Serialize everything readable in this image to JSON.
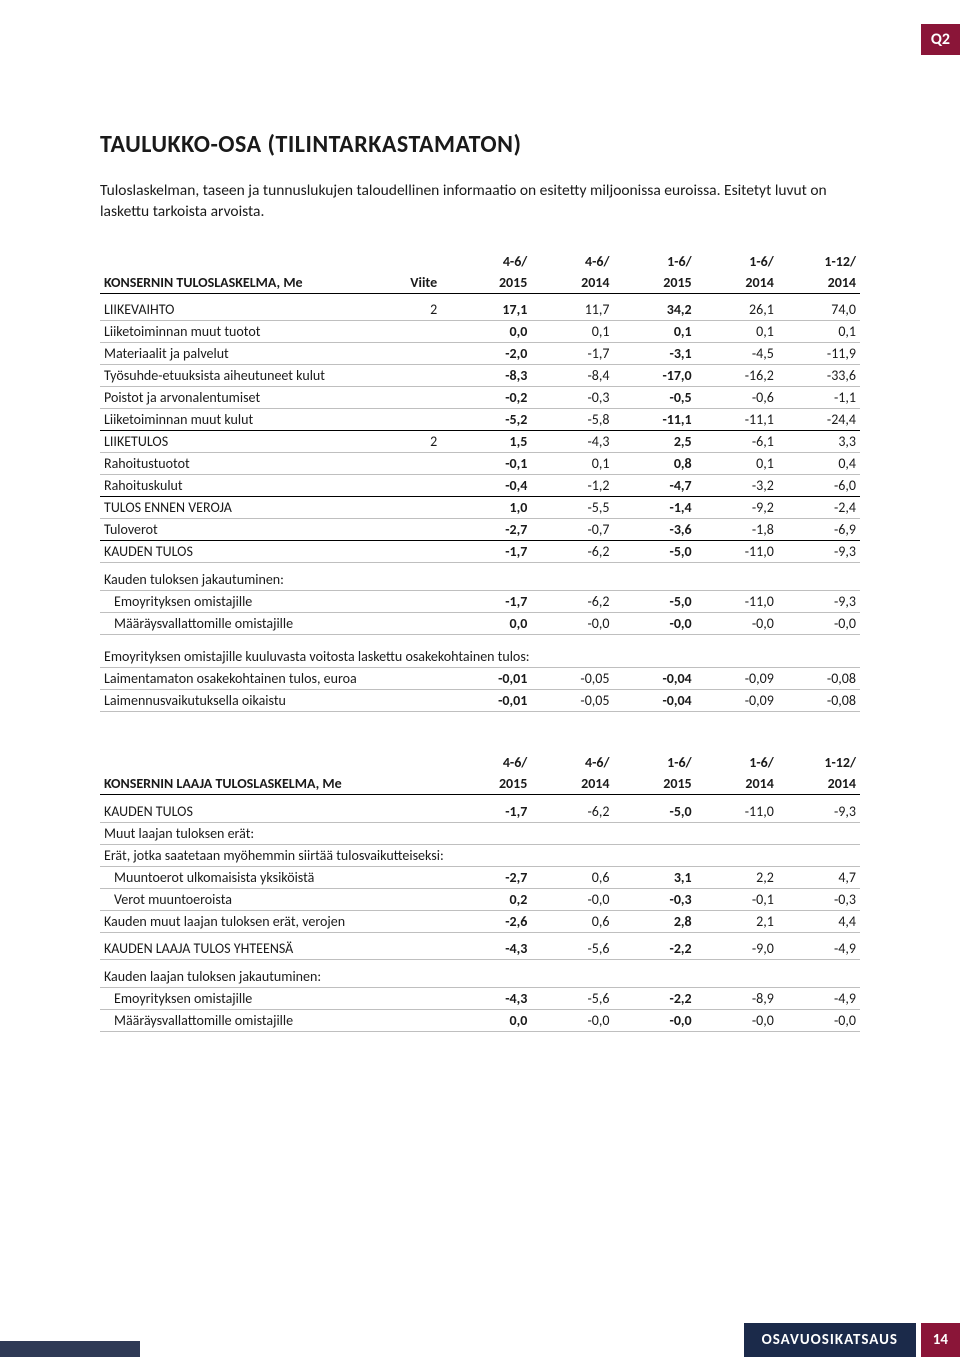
{
  "badge": "Q2",
  "title": "TAULUKKO-OSA (TILINTARKASTAMATON)",
  "intro": "Tuloslaskelman, taseen ja tunnuslukujen taloudellinen informaatio on esitetty miljoonissa euroissa. Esitetyt luvut on laskettu tarkoista arvoista.",
  "footer_title": "OSAVUOSIKATSAUS",
  "footer_page": "14",
  "table1": {
    "header_label": "KONSERNIN TULOSLASKELMA, Me",
    "header_note": "Viite",
    "periods_top": [
      "4-6/",
      "4-6/",
      "1-6/",
      "1-6/",
      "1-12/"
    ],
    "periods_bot": [
      "2015",
      "2014",
      "2015",
      "2014",
      "2014"
    ],
    "rows": [
      {
        "label": "LIIKEVAIHTO",
        "note": "2",
        "vals": [
          "17,1",
          "11,7",
          "34,2",
          "26,1",
          "74,0"
        ],
        "line": true
      },
      {
        "label": "Liiketoiminnan muut tuotot",
        "vals": [
          "0,0",
          "0,1",
          "0,1",
          "0,1",
          "0,1"
        ],
        "line": true
      },
      {
        "label": "Materiaalit ja palvelut",
        "vals": [
          "-2,0",
          "-1,7",
          "-3,1",
          "-4,5",
          "-11,9"
        ],
        "line": true
      },
      {
        "label": "Työsuhde-etuuksista aiheutuneet kulut",
        "vals": [
          "-8,3",
          "-8,4",
          "-17,0",
          "-16,2",
          "-33,6"
        ],
        "line": true
      },
      {
        "label": "Poistot ja arvonalentumiset",
        "vals": [
          "-0,2",
          "-0,3",
          "-0,5",
          "-0,6",
          "-1,1"
        ],
        "line": true
      },
      {
        "label": "Liiketoiminnan muut kulut",
        "vals": [
          "-5,2",
          "-5,8",
          "-11,1",
          "-11,1",
          "-24,4"
        ],
        "heavy": true
      },
      {
        "label": "LIIKETULOS",
        "note": "2",
        "vals": [
          "1,5",
          "-4,3",
          "2,5",
          "-6,1",
          "3,3"
        ],
        "line": true
      },
      {
        "label": "Rahoitustuotot",
        "vals": [
          "-0,1",
          "0,1",
          "0,8",
          "0,1",
          "0,4"
        ],
        "line": true
      },
      {
        "label": "Rahoituskulut",
        "vals": [
          "-0,4",
          "-1,2",
          "-4,7",
          "-3,2",
          "-6,0"
        ],
        "heavy": true
      },
      {
        "label": "TULOS ENNEN VEROJA",
        "vals": [
          "1,0",
          "-5,5",
          "-1,4",
          "-9,2",
          "-2,4"
        ],
        "line": true
      },
      {
        "label": "Tuloverot",
        "vals": [
          "-2,7",
          "-0,7",
          "-3,6",
          "-1,8",
          "-6,9"
        ],
        "heavy": true
      },
      {
        "label": "KAUDEN TULOS",
        "vals": [
          "-1,7",
          "-6,2",
          "-5,0",
          "-11,0",
          "-9,3"
        ],
        "line": true
      }
    ],
    "split_label": "Kauden tuloksen jakautuminen:",
    "split_rows": [
      {
        "label": "Emoyrityksen omistajille",
        "vals": [
          "-1,7",
          "-6,2",
          "-5,0",
          "-11,0",
          "-9,3"
        ]
      },
      {
        "label": "Määräysvallattomille omistajille",
        "vals": [
          "0,0",
          "-0,0",
          "-0,0",
          "-0,0",
          "-0,0"
        ]
      }
    ],
    "eps_label": "Emoyrityksen omistajille kuuluvasta voitosta laskettu osakekohtainen tulos:",
    "eps_rows": [
      {
        "label": "Laimentamaton osakekohtainen tulos, euroa",
        "vals": [
          "-0,01",
          "-0,05",
          "-0,04",
          "-0,09",
          "-0,08"
        ]
      },
      {
        "label": "Laimennusvaikutuksella oikaistu",
        "vals": [
          "-0,01",
          "-0,05",
          "-0,04",
          "-0,09",
          "-0,08"
        ]
      }
    ]
  },
  "table2": {
    "header_label": "KONSERNIN LAAJA TULOSLASKELMA, Me",
    "periods_top": [
      "4-6/",
      "4-6/",
      "1-6/",
      "1-6/",
      "1-12/"
    ],
    "periods_bot": [
      "2015",
      "2014",
      "2015",
      "2014",
      "2014"
    ],
    "rows1": [
      {
        "label": "KAUDEN TULOS",
        "vals": [
          "-1,7",
          "-6,2",
          "-5,0",
          "-11,0",
          "-9,3"
        ]
      }
    ],
    "sub_label1": "Muut laajan tuloksen erät:",
    "sub_label2": "Erät, jotka saatetaan myöhemmin siirtää tulosvaikutteiseksi:",
    "rows2": [
      {
        "label": "Muuntoerot ulkomaisista yksiköistä",
        "vals": [
          "-2,7",
          "0,6",
          "3,1",
          "2,2",
          "4,7"
        ]
      },
      {
        "label": "Verot muuntoeroista",
        "vals": [
          "0,2",
          "-0,0",
          "-0,3",
          "-0,1",
          "-0,3"
        ]
      }
    ],
    "row_sum": {
      "label": "Kauden muut laajan tuloksen erät, verojen",
      "vals": [
        "-2,6",
        "0,6",
        "2,8",
        "2,1",
        "4,4"
      ]
    },
    "row_total": {
      "label": "KAUDEN LAAJA TULOS YHTEENSÄ",
      "vals": [
        "-4,3",
        "-5,6",
        "-2,2",
        "-9,0",
        "-4,9"
      ]
    },
    "split_label": "Kauden laajan tuloksen jakautuminen:",
    "split_rows": [
      {
        "label": "Emoyrityksen omistajille",
        "vals": [
          "-4,3",
          "-5,6",
          "-2,2",
          "-8,9",
          "-4,9"
        ]
      },
      {
        "label": "Määräysvallattomille omistajille",
        "vals": [
          "0,0",
          "-0,0",
          "-0,0",
          "-0,0",
          "-0,0"
        ]
      }
    ]
  }
}
